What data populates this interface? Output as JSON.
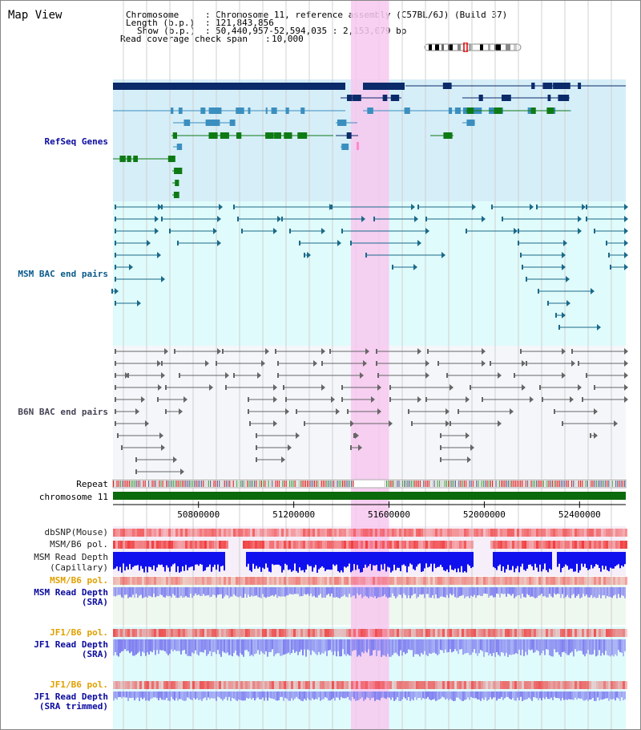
{
  "title": "Map View",
  "info": {
    "chromosome_key": "Chromosome",
    "chromosome_value": "Chromosome 11, reference assembly (C57BL/6J) (Build 37)",
    "length_key": "Length (b.p.)",
    "length_value": "121,843,856",
    "show_key": "Show (b.p.)",
    "show_value": "50,440,957-52,594,035 : 2,153,079 bp",
    "span_key": "Read coverage check span",
    "span_value": "10,000"
  },
  "tracks": {
    "refseq": "RefSeq Genes",
    "msm_bac": "MSM BAC end pairs",
    "b6n_bac": "B6N BAC end pairs",
    "repeat": "Repeat",
    "chromosome": "chromosome 11",
    "dbsnp": "dbSNP(Mouse)",
    "msm_b6_pol_1": "MSM/B6 pol.",
    "msm_depth_cap_1": "MSM Read Depth",
    "msm_depth_cap_2": "(Capillary)",
    "msm_b6_pol_2": "MSM/B6 pol.",
    "msm_depth_sra_1": "MSM Read Depth",
    "msm_depth_sra_2": "(SRA)",
    "jf1_b6_pol_1": "JF1/B6 pol.",
    "jf1_depth_sra_1": "JF1 Read Depth",
    "jf1_depth_sra_2": "(SRA)",
    "jf1_b6_pol_2": "JF1/B6 pol.",
    "jf1_depth_trim_1": "JF1 Read Depth",
    "jf1_depth_trim_2": "(SRA trimmed)"
  },
  "axis": {
    "ticks": [
      "50800000",
      "51200000",
      "51600000",
      "52000000",
      "52400000"
    ],
    "range_bp": [
      50440957,
      52594035
    ]
  },
  "highlight_region_bp": [
    51440000,
    51600000
  ],
  "colors": {
    "refseq_bg": "#d6eef8",
    "bac_bg": "#e0fbfb",
    "b6n_bg": "#f4f6fa",
    "highlight": "#f7c8ee",
    "refseq_dark": "#0a2a6a",
    "refseq_mid": "#3b8fbf",
    "refseq_green": "#0e7a14",
    "msm_line": "#1a6a8a",
    "b6n_line": "#666666",
    "chromosome_bar": "#0b6a0b",
    "pol_red": "#e83030",
    "depth_blue": "#1010ee",
    "depth_light": "#8080f0",
    "label_blue": "#0a0aa0",
    "label_teal": "#0a5a8a",
    "label_gray": "#333344",
    "label_orange": "#e0a000"
  }
}
